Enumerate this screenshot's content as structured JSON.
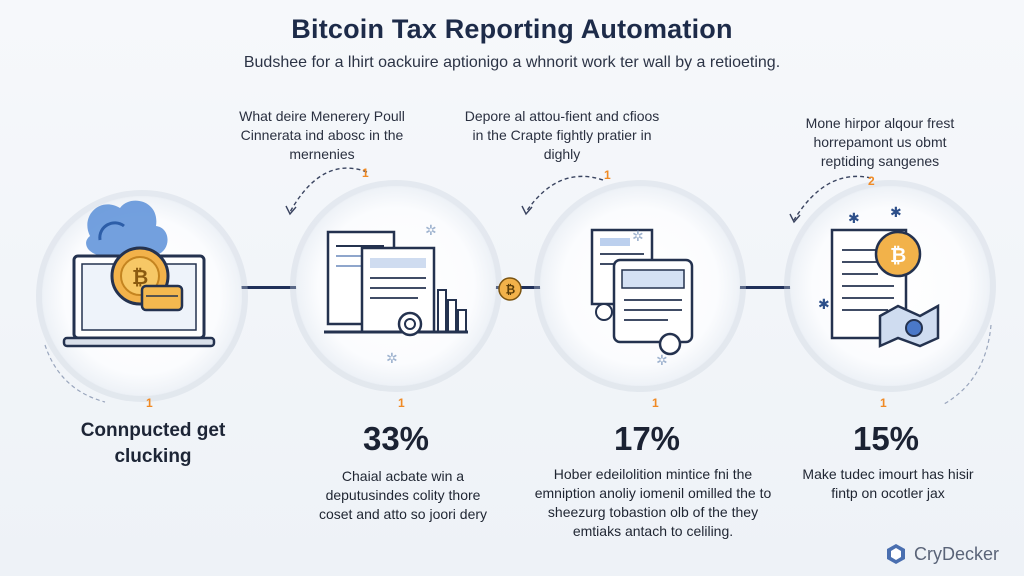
{
  "title": "Bitcoin Tax Reporting Automation",
  "subtitle": "Budshee for a lhirt oackuire aptionigo a whnorit work ter wall by a retioeting.",
  "top_captions": [
    "What deire Menerery Poull Cinnerata ind abosc in the mernenies",
    "Depore al attou-fient and cfioos in the Crapte fightly pratier in dighly",
    "Mone hirpor alqour frest horrepamont us obmt reptiding sangenes"
  ],
  "step_markers": [
    "1",
    "1",
    "2",
    "1",
    "1",
    "1",
    "1"
  ],
  "step1_label": "Connpucted get clucking",
  "stats": [
    "33%",
    "17%",
    "15%"
  ],
  "descriptions": [
    "Chaial acbate win a deputusindes colity thore coset and atto so joori dery",
    "Hober edeilolition mintice fni the emniption anoliy iomenil omilled the to sheezurg tobastion olb of the they emtiaks antach to celiling.",
    "Make tudec imourt has hisir fintp on ocotler jax"
  ],
  "brand": {
    "name": "CryDecker"
  },
  "icons": [
    "laptop-icon",
    "bitcoin-coin-icon",
    "documents-icon",
    "forms-icon",
    "tax-report-icon"
  ],
  "colors": {
    "navy": "#1d2b49",
    "accent": "#f08a24",
    "coin": "#f2b24a",
    "blue": "#4a78c8"
  }
}
